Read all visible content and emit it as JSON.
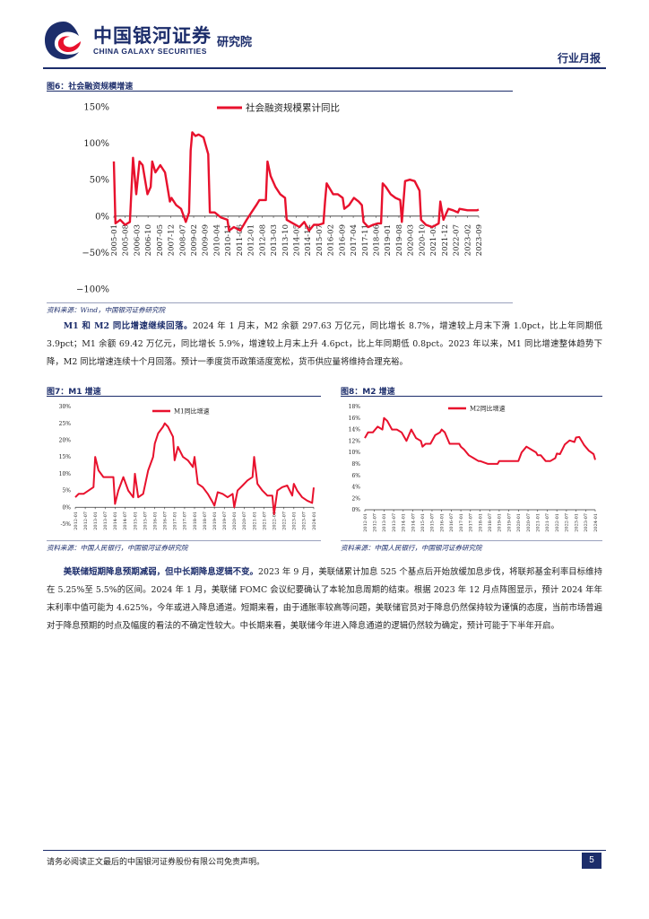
{
  "header": {
    "brand_cn": "中国银河证券",
    "brand_en": "CHINA GALAXY SECURITIES",
    "brand_inst": "研究院",
    "report_type": "行业月报",
    "brand_color": "#1c2d6b",
    "accent_color": "#e8112d"
  },
  "figure6": {
    "label": "图6：社会融资规模增速",
    "source": "资料来源：Wind，中国银河证券研究院"
  },
  "paragraph1": {
    "lead": "M1 和 M2 同比增速继续回落。",
    "body": "2024 年 1 月末，M2 余额 297.63 万亿元，同比增长 8.7%，增速较上月末下滑 1.0pct，比上年同期低 3.9pct；M1 余额 69.42 万亿元，同比增长 5.9%，增速较上月末上升 4.6pct，比上年同期低 0.8pct。2023 年以来，M1 同比增速整体趋势下降，M2 同比增速连续十个月回落。预计一季度货币政策适度宽松，货币供应量将维持合理充裕。"
  },
  "figure7": {
    "label": "图7：M1 增速",
    "source": "资料来源：中国人民银行，中国银河证券研究院"
  },
  "figure8": {
    "label": "图8：M2 增速",
    "source": "资料来源：中国人民银行，中国银河证券研究院"
  },
  "paragraph2": {
    "lead": "美联储短期降息预期减弱，但中长期降息逻辑不变。",
    "body": "2023 年 9 月，美联储累计加息 525 个基点后开始放缓加息步伐，将联邦基金利率目标维持在 5.25%至 5.5%的区间。2024 年 1 月，美联储 FOMC 会议纪要确认了本轮加息周期的结束。根据 2023 年 12 月点阵图显示，预计 2024 年年末利率中值可能为 4.625%，今年或进入降息通道。短期来看，由于通胀率较高等问题，美联储官员对于降息仍然保持较为谨慎的态度，当前市场普遍对于降息预期的时点及幅度的看法的不确定性较大。中长期来看，美联储今年进入降息通道的逻辑仍然较为确定，预计可能于下半年开启。"
  },
  "footer": {
    "disclaimer": "请务必阅读正文最后的中国银河证券股份有限公司免责声明。",
    "page_number": "5"
  },
  "chart_data": [
    {
      "type": "line",
      "title": "",
      "ylim": [
        -100,
        150
      ],
      "yticks": [
        "150%",
        "100%",
        "50%",
        "0%",
        "−50%",
        "−100%"
      ],
      "ytick_values": [
        150,
        100,
        50,
        0,
        -50,
        -100
      ],
      "xticks": [
        "2005-01",
        "2005-08",
        "2006-03",
        "2006-10",
        "2007-05",
        "2007-12",
        "2008-07",
        "2009-02",
        "2009-09",
        "2010-04",
        "2010-11",
        "2011-06",
        "2012-01",
        "2012-08",
        "2013-03",
        "2013-10",
        "2014-05",
        "2014-12",
        "2015-07",
        "2016-02",
        "2016-09",
        "2017-04",
        "2017-11",
        "2018-06",
        "2019-01",
        "2019-08",
        "2020-03",
        "2020-10",
        "2021-05",
        "2021-12",
        "2022-07",
        "2023-02",
        "2023-09"
      ],
      "legend_position": "top-center",
      "series": [
        {
          "name": "社会融资规模累计同比",
          "color": "#e8112d",
          "start": "2005-01",
          "end": "2024-01",
          "points": [
            [
              "2005-01",
              75
            ],
            [
              "2005-02",
              -10
            ],
            [
              "2005-05",
              -5
            ],
            [
              "2005-08",
              -12
            ],
            [
              "2005-11",
              -8
            ],
            [
              "2006-01",
              80
            ],
            [
              "2006-03",
              30
            ],
            [
              "2006-05",
              75
            ],
            [
              "2006-07",
              70
            ],
            [
              "2006-10",
              30
            ],
            [
              "2006-12",
              40
            ],
            [
              "2007-01",
              75
            ],
            [
              "2007-03",
              60
            ],
            [
              "2007-06",
              70
            ],
            [
              "2007-09",
              60
            ],
            [
              "2007-12",
              20
            ],
            [
              "2008-01",
              25
            ],
            [
              "2008-04",
              15
            ],
            [
              "2008-07",
              10
            ],
            [
              "2008-10",
              -8
            ],
            [
              "2008-12",
              5
            ],
            [
              "2009-01",
              90
            ],
            [
              "2009-02",
              115
            ],
            [
              "2009-04",
              110
            ],
            [
              "2009-06",
              112
            ],
            [
              "2009-09",
              108
            ],
            [
              "2009-12",
              85
            ],
            [
              "2010-01",
              5
            ],
            [
              "2010-04",
              5
            ],
            [
              "2010-08",
              -2
            ],
            [
              "2010-12",
              -5
            ],
            [
              "2011-01",
              -20
            ],
            [
              "2011-04",
              -15
            ],
            [
              "2011-08",
              -20
            ],
            [
              "2011-12",
              -5
            ],
            [
              "2012-03",
              5
            ],
            [
              "2012-06",
              15
            ],
            [
              "2012-08",
              22
            ],
            [
              "2012-10",
              22
            ],
            [
              "2012-12",
              22
            ],
            [
              "2013-01",
              75
            ],
            [
              "2013-03",
              55
            ],
            [
              "2013-06",
              40
            ],
            [
              "2013-09",
              30
            ],
            [
              "2013-12",
              25
            ],
            [
              "2014-01",
              -5
            ],
            [
              "2014-05",
              -10
            ],
            [
              "2014-09",
              -15
            ],
            [
              "2014-12",
              -8
            ],
            [
              "2015-03",
              -20
            ],
            [
              "2015-06",
              -12
            ],
            [
              "2015-09",
              -12
            ],
            [
              "2015-12",
              -10
            ],
            [
              "2016-01",
              20
            ],
            [
              "2016-02",
              45
            ],
            [
              "2016-06",
              30
            ],
            [
              "2016-09",
              30
            ],
            [
              "2016-12",
              25
            ],
            [
              "2017-01",
              10
            ],
            [
              "2017-04",
              15
            ],
            [
              "2017-07",
              25
            ],
            [
              "2017-10",
              20
            ],
            [
              "2017-12",
              15
            ],
            [
              "2018-01",
              -8
            ],
            [
              "2018-04",
              -15
            ],
            [
              "2018-07",
              -12
            ],
            [
              "2018-10",
              -10
            ],
            [
              "2018-12",
              -10
            ],
            [
              "2019-01",
              45
            ],
            [
              "2019-03",
              40
            ],
            [
              "2019-06",
              30
            ],
            [
              "2019-09",
              25
            ],
            [
              "2019-12",
              22
            ],
            [
              "2020-01",
              -8
            ],
            [
              "2020-03",
              48
            ],
            [
              "2020-06",
              50
            ],
            [
              "2020-09",
              48
            ],
            [
              "2020-12",
              35
            ],
            [
              "2021-01",
              -5
            ],
            [
              "2021-04",
              -12
            ],
            [
              "2021-08",
              -15
            ],
            [
              "2021-12",
              -10
            ],
            [
              "2022-01",
              20
            ],
            [
              "2022-03",
              -5
            ],
            [
              "2022-06",
              10
            ],
            [
              "2022-09",
              8
            ],
            [
              "2022-12",
              5
            ],
            [
              "2023-01",
              10
            ],
            [
              "2023-06",
              8
            ],
            [
              "2023-12",
              8
            ],
            [
              "2024-01",
              9
            ]
          ]
        }
      ]
    },
    {
      "type": "line",
      "title": "",
      "ylim": [
        -5,
        30
      ],
      "yticks": [
        "30%",
        "25%",
        "20%",
        "15%",
        "10%",
        "5%",
        "0%",
        "-5%"
      ],
      "ytick_values": [
        30,
        25,
        20,
        15,
        10,
        5,
        0,
        -5
      ],
      "xticks": [
        "2012-01",
        "2012-07",
        "2013-01",
        "2013-07",
        "2014-01",
        "2014-07",
        "2015-01",
        "2015-07",
        "2016-01",
        "2016-07",
        "2017-01",
        "2017-07",
        "2018-01",
        "2018-07",
        "2019-01",
        "2019-07",
        "2020-01",
        "2020-07",
        "2021-01",
        "2021-07",
        "2022-01",
        "2022-07",
        "2023-01",
        "2023-07",
        "2024-01"
      ],
      "legend_position": "top-center",
      "series": [
        {
          "name": "M1同比增速",
          "color": "#e8112d",
          "points": [
            [
              "2012-01",
              3
            ],
            [
              "2012-03",
              4
            ],
            [
              "2012-06",
              4
            ],
            [
              "2012-09",
              5
            ],
            [
              "2012-12",
              6
            ],
            [
              "2013-01",
              15
            ],
            [
              "2013-03",
              11
            ],
            [
              "2013-06",
              9
            ],
            [
              "2013-09",
              9
            ],
            [
              "2013-12",
              9
            ],
            [
              "2014-01",
              1
            ],
            [
              "2014-03",
              5
            ],
            [
              "2014-06",
              9
            ],
            [
              "2014-09",
              5
            ],
            [
              "2014-12",
              3
            ],
            [
              "2015-01",
              10
            ],
            [
              "2015-03",
              3
            ],
            [
              "2015-06",
              4
            ],
            [
              "2015-09",
              11
            ],
            [
              "2015-12",
              15
            ],
            [
              "2016-01",
              19
            ],
            [
              "2016-03",
              22
            ],
            [
              "2016-06",
              24
            ],
            [
              "2016-07",
              25
            ],
            [
              "2016-09",
              24
            ],
            [
              "2016-12",
              21
            ],
            [
              "2017-01",
              14
            ],
            [
              "2017-03",
              18
            ],
            [
              "2017-06",
              15
            ],
            [
              "2017-09",
              14
            ],
            [
              "2017-12",
              12
            ],
            [
              "2018-01",
              15
            ],
            [
              "2018-03",
              7
            ],
            [
              "2018-06",
              6
            ],
            [
              "2018-09",
              4
            ],
            [
              "2018-12",
              1.5
            ],
            [
              "2019-01",
              0.5
            ],
            [
              "2019-03",
              4.5
            ],
            [
              "2019-06",
              4
            ],
            [
              "2019-09",
              3
            ],
            [
              "2019-12",
              4
            ],
            [
              "2020-01",
              0
            ],
            [
              "2020-03",
              5
            ],
            [
              "2020-06",
              6.5
            ],
            [
              "2020-09",
              8
            ],
            [
              "2020-12",
              9
            ],
            [
              "2021-01",
              15
            ],
            [
              "2021-03",
              7
            ],
            [
              "2021-06",
              5
            ],
            [
              "2021-09",
              3.5
            ],
            [
              "2021-12",
              3.5
            ],
            [
              "2022-01",
              -2
            ],
            [
              "2022-03",
              5
            ],
            [
              "2022-06",
              6
            ],
            [
              "2022-09",
              6.5
            ],
            [
              "2022-12",
              3.5
            ],
            [
              "2023-01",
              7
            ],
            [
              "2023-03",
              5
            ],
            [
              "2023-06",
              3
            ],
            [
              "2023-09",
              2
            ],
            [
              "2023-12",
              1.3
            ],
            [
              "2024-01",
              5.9
            ]
          ]
        }
      ]
    },
    {
      "type": "line",
      "title": "",
      "ylim": [
        0,
        18
      ],
      "yticks": [
        "18%",
        "16%",
        "14%",
        "12%",
        "10%",
        "8%",
        "6%",
        "4%",
        "2%",
        "0%"
      ],
      "ytick_values": [
        18,
        16,
        14,
        12,
        10,
        8,
        6,
        4,
        2,
        0
      ],
      "xticks": [
        "2012-01",
        "2012-07",
        "2013-01",
        "2013-07",
        "2014-01",
        "2014-07",
        "2015-01",
        "2015-07",
        "2016-01",
        "2016-07",
        "2017-01",
        "2017-07",
        "2018-01",
        "2018-07",
        "2019-01",
        "2019-07",
        "2020-01",
        "2020-07",
        "2021-01",
        "2021-07",
        "2022-01",
        "2022-07",
        "2023-01",
        "2023-07",
        "2024-01"
      ],
      "legend_position": "top-center",
      "series": [
        {
          "name": "M2同比增速",
          "color": "#e8112d",
          "points": [
            [
              "2012-01",
              12.5
            ],
            [
              "2012-03",
              13.5
            ],
            [
              "2012-06",
              13.5
            ],
            [
              "2012-09",
              14.5
            ],
            [
              "2012-12",
              14
            ],
            [
              "2013-01",
              16
            ],
            [
              "2013-03",
              15.5
            ],
            [
              "2013-06",
              14
            ],
            [
              "2013-09",
              14
            ],
            [
              "2013-12",
              13.5
            ],
            [
              "2014-01",
              13
            ],
            [
              "2014-03",
              12
            ],
            [
              "2014-06",
              14
            ],
            [
              "2014-09",
              12.5
            ],
            [
              "2014-12",
              12
            ],
            [
              "2015-01",
              11
            ],
            [
              "2015-03",
              11.5
            ],
            [
              "2015-06",
              11.5
            ],
            [
              "2015-09",
              13
            ],
            [
              "2015-12",
              13.5
            ],
            [
              "2016-01",
              14
            ],
            [
              "2016-03",
              13.5
            ],
            [
              "2016-06",
              11.5
            ],
            [
              "2016-09",
              11.5
            ],
            [
              "2016-12",
              11.5
            ],
            [
              "2017-01",
              11
            ],
            [
              "2017-03",
              10.5
            ],
            [
              "2017-06",
              9.5
            ],
            [
              "2017-09",
              9
            ],
            [
              "2017-12",
              8.5
            ],
            [
              "2018-01",
              8.5
            ],
            [
              "2018-06",
              8
            ],
            [
              "2018-12",
              8
            ],
            [
              "2019-01",
              8.5
            ],
            [
              "2019-06",
              8.5
            ],
            [
              "2019-12",
              8.5
            ],
            [
              "2020-01",
              8.5
            ],
            [
              "2020-03",
              10
            ],
            [
              "2020-06",
              11
            ],
            [
              "2020-09",
              10.5
            ],
            [
              "2020-12",
              10
            ],
            [
              "2021-01",
              9.5
            ],
            [
              "2021-03",
              9.5
            ],
            [
              "2021-06",
              8.5
            ],
            [
              "2021-09",
              8.5
            ],
            [
              "2021-12",
              9
            ],
            [
              "2022-01",
              9.8
            ],
            [
              "2022-03",
              9.7
            ],
            [
              "2022-06",
              11.4
            ],
            [
              "2022-09",
              12.1
            ],
            [
              "2022-12",
              11.8
            ],
            [
              "2023-01",
              12.6
            ],
            [
              "2023-03",
              12.7
            ],
            [
              "2023-06",
              11.3
            ],
            [
              "2023-09",
              10.3
            ],
            [
              "2023-12",
              9.7
            ],
            [
              "2024-01",
              8.7
            ]
          ]
        }
      ]
    }
  ]
}
